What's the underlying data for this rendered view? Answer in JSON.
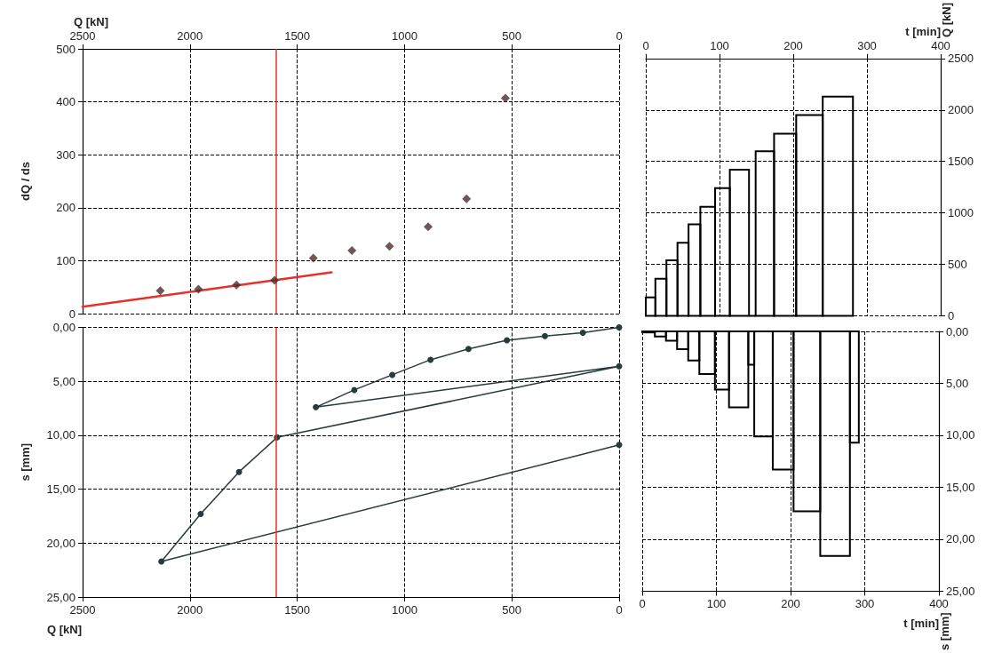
{
  "chart_data": [
    {
      "type": "scatter",
      "xlabel": "Q [kN]",
      "ylabel": "dQ / ds",
      "xlim": [
        2500,
        0
      ],
      "xticks": [
        2500,
        2000,
        1500,
        1000,
        500,
        0
      ],
      "ylim": [
        0,
        500
      ],
      "yticks": [
        0,
        100,
        200,
        300,
        400,
        500
      ],
      "grid": true,
      "marker": "diamond",
      "series": [
        {
          "color": "#4b2d2d",
          "x": [
            2138,
            1960,
            1783,
            1606,
            1425,
            1245,
            1070,
            890,
            711,
            530
          ],
          "values": [
            43,
            46,
            54,
            63,
            105,
            119,
            127,
            164,
            217,
            407
          ]
        },
        {
          "type": "line",
          "color": "#e8302a",
          "marker": "none",
          "x": [
            2500,
            1340
          ],
          "values": [
            13,
            78
          ]
        }
      ],
      "ref_lines": [
        {
          "axis": "x",
          "value": 1600,
          "color": "#e8302a"
        }
      ]
    },
    {
      "type": "line",
      "xlabel": "Q [kN]",
      "ylabel": "s [mm]",
      "xlim": [
        2500,
        0
      ],
      "xticks": [
        2500,
        2000,
        1500,
        1000,
        500,
        0
      ],
      "ylim": [
        25,
        0
      ],
      "yticks": [
        {
          "value": 0,
          "label": "0,00"
        },
        {
          "value": 5,
          "label": "5,00"
        },
        {
          "value": 10,
          "label": "10,00"
        },
        {
          "value": 15,
          "label": "15,00"
        },
        {
          "value": 20,
          "label": "20,00"
        },
        {
          "value": 25,
          "label": "25,00"
        }
      ],
      "grid": true,
      "marker": "circle",
      "series": [
        {
          "color": "#263c3c",
          "x": [
            0,
            169,
            346,
            523,
            702,
            879,
            1057,
            1234,
            1413,
            0,
            1594,
            1771,
            1950,
            2133,
            0
          ],
          "values": [
            0,
            0.5,
            0.8,
            1.2,
            2.0,
            3.0,
            4.4,
            5.8,
            7.4,
            3.6,
            10.2,
            13.4,
            17.3,
            21.7,
            10.9
          ]
        }
      ],
      "ref_lines": [
        {
          "axis": "x",
          "value": 1600,
          "color": "#e8302a"
        }
      ]
    },
    {
      "type": "histogram",
      "xlabel": "t [min]",
      "ylabel": "Q [kN]",
      "xlim": [
        0,
        400
      ],
      "xticks": [
        0,
        100,
        200,
        300,
        400
      ],
      "ylim": [
        0,
        2500
      ],
      "yticks": [
        0,
        500,
        1000,
        1500,
        2000,
        2500
      ],
      "grid": true,
      "color": "#000000",
      "bins": [
        0,
        13,
        28,
        43,
        58,
        74,
        94,
        114,
        140,
        149,
        174,
        204,
        240,
        281
      ],
      "values": [
        180,
        360,
        540,
        710,
        890,
        1060,
        1240,
        1420,
        0,
        1600,
        1770,
        1950,
        2130
      ]
    },
    {
      "type": "histogram",
      "xlabel": "t [min]",
      "ylabel": "s [mm]",
      "xlim": [
        0,
        400
      ],
      "xticks": [
        0,
        100,
        200,
        300,
        400
      ],
      "ylim": [
        25,
        0
      ],
      "yticks": [
        {
          "value": 0,
          "label": "0,00"
        },
        {
          "value": 5,
          "label": "5,00"
        },
        {
          "value": 10,
          "label": "10,00"
        },
        {
          "value": 15,
          "label": "15,00"
        },
        {
          "value": 20,
          "label": "20,00"
        },
        {
          "value": 25,
          "label": "25,00"
        }
      ],
      "grid": true,
      "color": "#000000",
      "bins": [
        0,
        17,
        32,
        47,
        62,
        77,
        98,
        117,
        143,
        151,
        176,
        204,
        240,
        280,
        292
      ],
      "values": [
        0.1,
        0.5,
        0.9,
        1.7,
        2.8,
        4.1,
        5.6,
        7.3,
        3.2,
        10.1,
        13.3,
        17.3,
        21.6,
        10.7
      ]
    }
  ]
}
